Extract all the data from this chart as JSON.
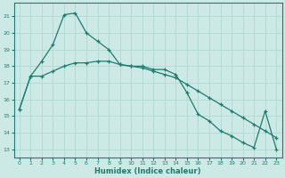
{
  "xlabel": "Humidex (Indice chaleur)",
  "xlim": [
    -0.5,
    23.5
  ],
  "ylim": [
    12.5,
    21.8
  ],
  "yticks": [
    13,
    14,
    15,
    16,
    17,
    18,
    19,
    20,
    21
  ],
  "xticks": [
    0,
    1,
    2,
    3,
    4,
    5,
    6,
    7,
    8,
    9,
    10,
    11,
    12,
    13,
    14,
    15,
    16,
    17,
    18,
    19,
    20,
    21,
    22,
    23
  ],
  "bg_color": "#cce9e6",
  "grid_color": "#b0d8d4",
  "line_color": "#1e7b6e",
  "line1_x": [
    0,
    1,
    2,
    3,
    4,
    5,
    6,
    7,
    8,
    9,
    10,
    11,
    12,
    13,
    14,
    15,
    16,
    17,
    18,
    19,
    20,
    21,
    22,
    23
  ],
  "line1_y": [
    15.4,
    17.4,
    18.3,
    19.3,
    21.1,
    21.2,
    20.0,
    19.5,
    19.0,
    18.1,
    18.0,
    18.0,
    17.8,
    17.8,
    17.5,
    16.4,
    15.1,
    14.7,
    14.1,
    13.8,
    13.4,
    13.1,
    15.3,
    13.0
  ],
  "line2_x": [
    0,
    1,
    2,
    3,
    4,
    5,
    6,
    7,
    8,
    9,
    10,
    11,
    12,
    13,
    14,
    15,
    16,
    17,
    18,
    19,
    20,
    21,
    22,
    23
  ],
  "line2_y": [
    15.4,
    17.4,
    17.4,
    17.7,
    18.0,
    18.2,
    18.2,
    18.3,
    18.3,
    18.1,
    18.0,
    17.9,
    17.7,
    17.5,
    17.3,
    16.9,
    16.5,
    16.1,
    15.7,
    15.3,
    14.9,
    14.5,
    14.1,
    13.7
  ]
}
